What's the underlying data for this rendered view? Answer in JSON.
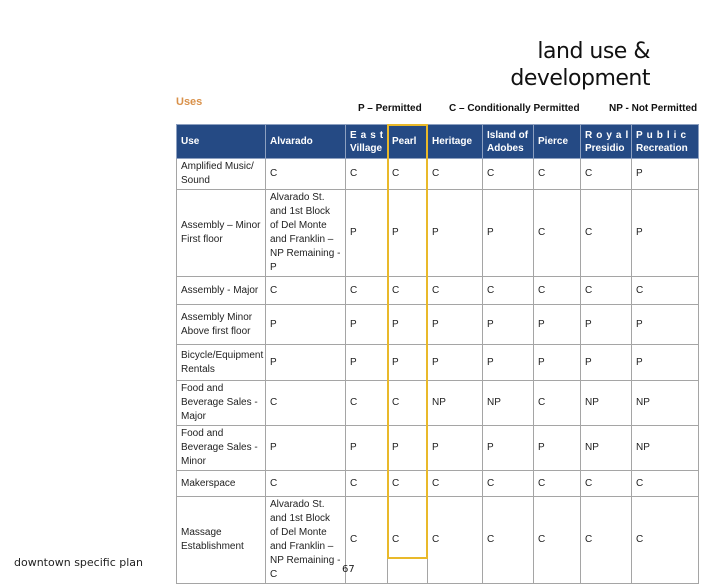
{
  "page_title_line1": "land use &",
  "page_title_line2": "development",
  "section_label": "Uses",
  "legend": {
    "permitted": "P – Permitted",
    "conditional": "C – Conditionally Permitted",
    "not_permitted": "NP - Not Permitted"
  },
  "table": {
    "headers": [
      "Use",
      "Alvarado",
      "East Village",
      "Pearl",
      "Heritage",
      "Island of Adobes",
      "Pierce",
      "Royal Presidio",
      "Public Recreation"
    ],
    "rows": [
      {
        "use": "Amplified Music/ Sound",
        "values": [
          "C",
          "C",
          "C",
          "C",
          "C",
          "C",
          "C",
          "P"
        ]
      },
      {
        "use": "Assembly – Minor First floor",
        "values": [
          "Alvarado St. and 1st Block of Del Monte and Franklin –NP Remaining - P",
          "P",
          "P",
          "P",
          "P",
          "C",
          "C",
          "P"
        ]
      },
      {
        "use": "Assembly - Major",
        "values": [
          "C",
          "C",
          "C",
          "C",
          "C",
          "C",
          "C",
          "C"
        ]
      },
      {
        "use": "Assembly Minor Above first floor",
        "values": [
          "P",
          "P",
          "P",
          "P",
          "P",
          "P",
          "P",
          "P"
        ]
      },
      {
        "use": "Bicycle/Equipment Rentals",
        "values": [
          "P",
          "P",
          "P",
          "P",
          "P",
          "P",
          "P",
          "P"
        ]
      },
      {
        "use": "Food and Beverage Sales - Major",
        "values": [
          "C",
          "C",
          "C",
          "NP",
          "NP",
          "C",
          "NP",
          "NP"
        ]
      },
      {
        "use": "Food and Beverage Sales - Minor",
        "values": [
          "P",
          "P",
          "P",
          "P",
          "P",
          "P",
          "NP",
          "NP"
        ]
      },
      {
        "use": "Makerspace",
        "values": [
          "C",
          "C",
          "C",
          "C",
          "C",
          "C",
          "C",
          "C"
        ]
      },
      {
        "use": "Massage Establishment",
        "values": [
          "Alvarado St. and 1st Block of Del Monte and Franklin –NP Remaining - C",
          "C",
          "C",
          "C",
          "C",
          "C",
          "C",
          "C"
        ]
      }
    ],
    "highlighted_column": "Pearl",
    "header_color": "#254a84",
    "highlight_color": "#e9b92a"
  },
  "footer": {
    "doc_name": "downtown specific plan",
    "page_number": "67"
  }
}
